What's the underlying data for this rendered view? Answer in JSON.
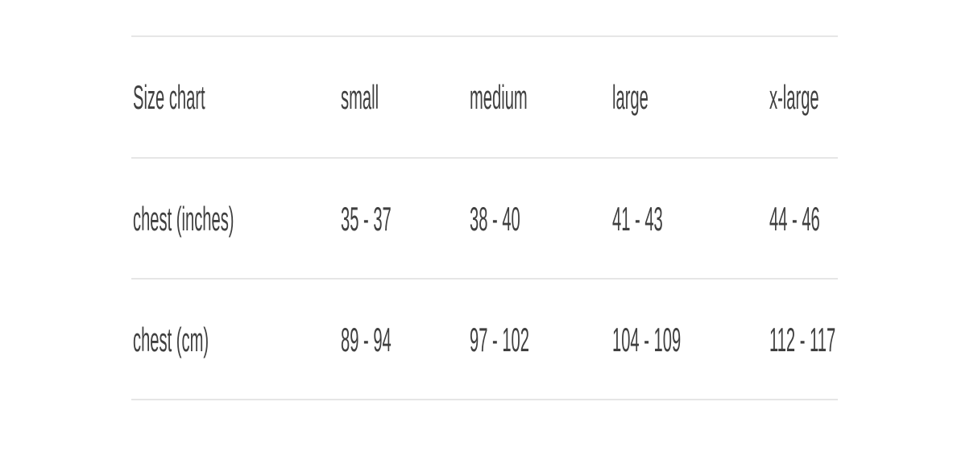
{
  "table": {
    "header": [
      "Size chart",
      "small",
      "medium",
      "large",
      "x-large"
    ],
    "rows": [
      [
        "chest (inches)",
        "35 - 37",
        "38 - 40",
        "41 - 43",
        "44 - 46"
      ],
      [
        "chest (cm)",
        "89 - 94",
        "97 - 102",
        "104 - 109",
        "112 - 117"
      ]
    ]
  }
}
